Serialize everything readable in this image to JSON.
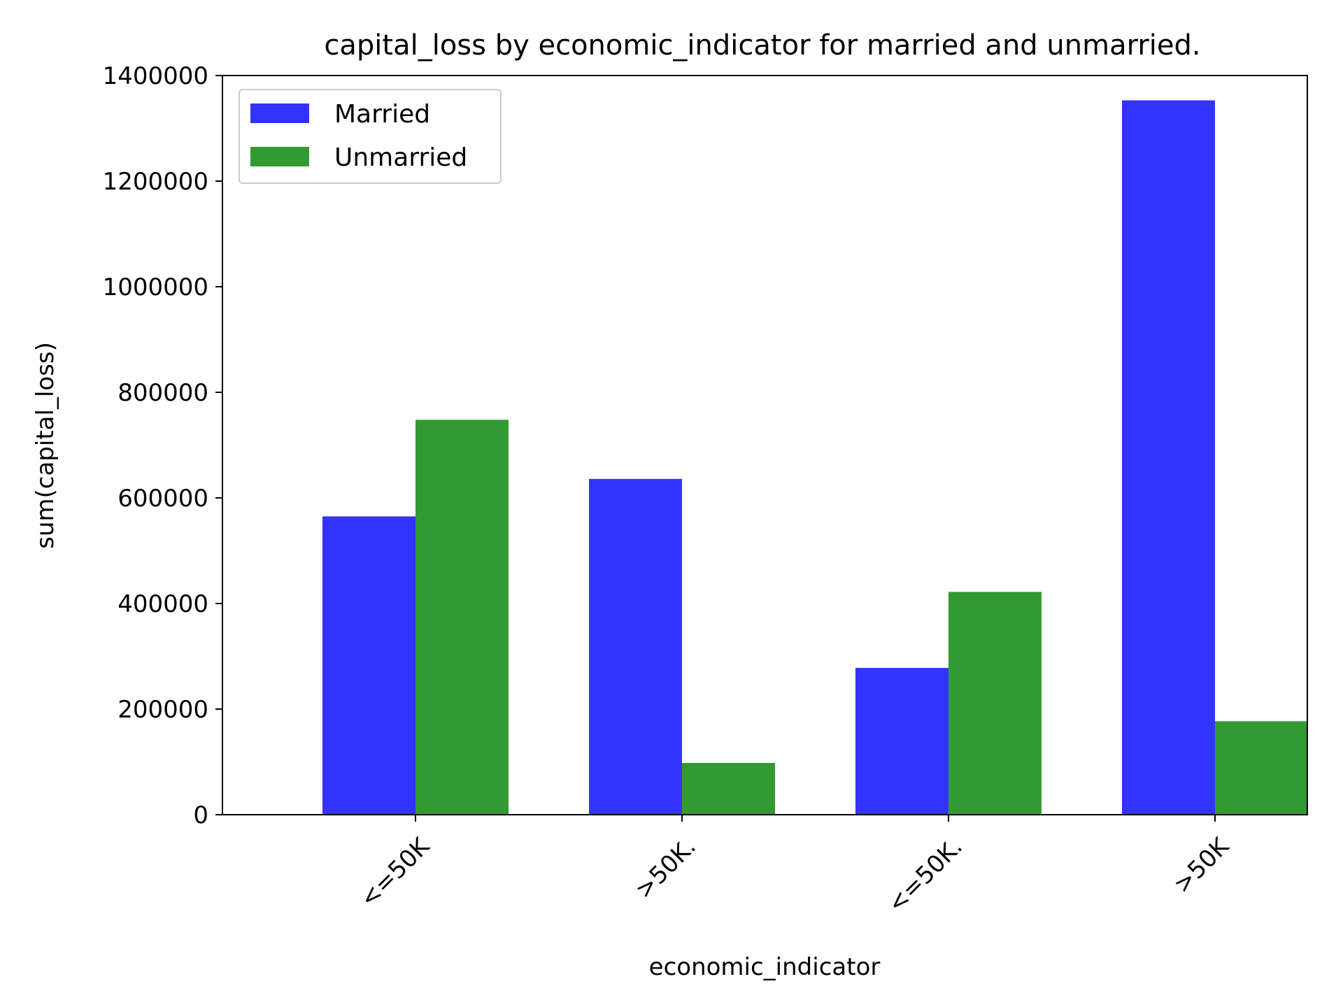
{
  "chart_data": {
    "type": "bar",
    "title": "capital_loss by economic_indicator for married and unmarried.",
    "xlabel": "economic_indicator",
    "ylabel": "sum(capital_loss)",
    "categories": [
      "<=50K",
      ">50K.",
      "<=50K.",
      ">50K"
    ],
    "series": [
      {
        "name": "Married",
        "color": "#3333ff",
        "values": [
          565000,
          636000,
          278000,
          1353000
        ]
      },
      {
        "name": "Unmarried",
        "color": "#339933",
        "values": [
          748000,
          98000,
          422000,
          177000
        ]
      }
    ],
    "ylim": [
      0,
      1400000
    ],
    "yticks": [
      0,
      200000,
      400000,
      600000,
      800000,
      1000000,
      1200000,
      1400000
    ],
    "ytick_labels": [
      "0",
      "200000",
      "400000",
      "600000",
      "800000",
      "1000000",
      "1200000",
      "1400000"
    ],
    "legend_position": "top-left",
    "grid": false
  }
}
